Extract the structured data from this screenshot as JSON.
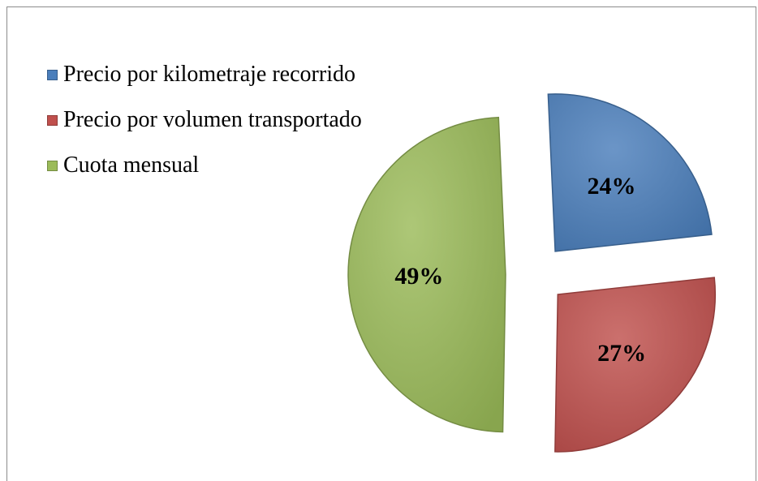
{
  "chart_data": {
    "type": "pie",
    "exploded": true,
    "legend_position": "top-left",
    "slices": [
      {
        "name": "Precio por kilometraje recorrido",
        "value": 24,
        "label": "24%",
        "color": "#4a7ebb"
      },
      {
        "name": "Precio por volumen transportado",
        "value": 27,
        "label": "27%",
        "color": "#c0504d"
      },
      {
        "name": "Cuota mensual",
        "value": 49,
        "label": "49%",
        "color": "#9bbb59"
      }
    ]
  }
}
